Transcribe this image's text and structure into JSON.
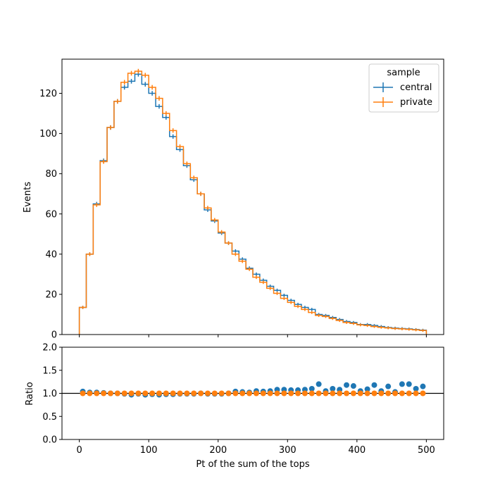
{
  "chart_data": [
    {
      "type": "step",
      "panel": "main",
      "ylabel": "Events",
      "xlim": [
        -25,
        525
      ],
      "ylim": [
        0,
        137
      ],
      "yticks": [
        0,
        20,
        40,
        60,
        80,
        100,
        120
      ],
      "bin_edges": [
        0,
        10,
        20,
        30,
        40,
        50,
        60,
        70,
        80,
        90,
        100,
        110,
        120,
        130,
        140,
        150,
        160,
        170,
        180,
        190,
        200,
        210,
        220,
        230,
        240,
        250,
        260,
        270,
        280,
        290,
        300,
        310,
        320,
        330,
        340,
        350,
        360,
        370,
        380,
        390,
        400,
        410,
        420,
        430,
        440,
        450,
        460,
        470,
        480,
        490,
        500
      ],
      "legend": {
        "title": "sample",
        "position": "top-right"
      },
      "series": [
        {
          "name": "central",
          "color": "#1f77b4",
          "values": [
            13.5,
            40,
            65,
            86.5,
            103,
            116,
            123,
            126,
            129.5,
            124.5,
            120,
            113.5,
            108,
            98.5,
            92,
            84,
            77,
            70,
            62,
            56.5,
            50.5,
            45.5,
            41.5,
            37.5,
            33,
            30,
            27,
            24,
            22,
            19.5,
            17,
            15,
            13.5,
            12.5,
            10,
            9.5,
            8.5,
            7.5,
            6.5,
            6,
            5,
            5,
            4.5,
            4,
            3.5,
            3.2,
            3,
            2.8,
            2.5,
            2.2
          ]
        },
        {
          "name": "private",
          "color": "#ff7f0e",
          "values": [
            13.5,
            40,
            64.5,
            86,
            103,
            116,
            125.5,
            130,
            131,
            129,
            123,
            117.5,
            110,
            101.5,
            93.5,
            85,
            78,
            70,
            63,
            57,
            51,
            45.5,
            40,
            36.5,
            32.5,
            28.5,
            26,
            23,
            20.5,
            18,
            16,
            14,
            12.5,
            11,
            9.5,
            9,
            8,
            7,
            6,
            5.5,
            4.8,
            4.5,
            4,
            3.6,
            3.3,
            3,
            2.8,
            2.6,
            2.3,
            2
          ]
        }
      ]
    },
    {
      "type": "scatter",
      "panel": "ratio",
      "xlabel": "Pt of the sum of the tops",
      "ylabel": "Ratio",
      "xlim": [
        -25,
        525
      ],
      "ylim": [
        0,
        2
      ],
      "yticks": [
        "0.0",
        "0.5",
        "1.0",
        "1.5",
        "2.0"
      ],
      "xticks": [
        "0",
        "100",
        "200",
        "300",
        "400",
        "500"
      ],
      "reference_line": 1.0,
      "x": [
        5,
        15,
        25,
        35,
        45,
        55,
        65,
        75,
        85,
        95,
        105,
        115,
        125,
        135,
        145,
        155,
        165,
        175,
        185,
        195,
        205,
        215,
        225,
        235,
        245,
        255,
        265,
        275,
        285,
        295,
        305,
        315,
        325,
        335,
        345,
        355,
        365,
        375,
        385,
        395,
        405,
        415,
        425,
        435,
        445,
        455,
        465,
        475,
        485,
        495
      ],
      "series": [
        {
          "name": "central",
          "color": "#1f77b4",
          "values": [
            1.04,
            1.02,
            1.02,
            1.01,
            1.0,
            1.0,
            0.99,
            0.97,
            0.99,
            0.97,
            0.98,
            0.97,
            0.98,
            0.98,
            0.99,
            0.99,
            0.99,
            1.0,
            0.99,
            0.99,
            0.99,
            1.0,
            1.04,
            1.03,
            1.02,
            1.05,
            1.04,
            1.05,
            1.08,
            1.08,
            1.07,
            1.07,
            1.08,
            1.1,
            1.2,
            1.05,
            1.1,
            1.08,
            1.18,
            1.16,
            1.05,
            1.09,
            1.18,
            1.05,
            1.15,
            1.03,
            1.2,
            1.2,
            1.1,
            1.15
          ]
        },
        {
          "name": "private",
          "color": "#ff7f0e",
          "values": [
            1,
            1,
            1,
            1,
            1,
            1,
            1,
            1,
            1,
            1,
            1,
            1,
            1,
            1,
            1,
            1,
            1,
            1,
            1,
            1,
            1,
            1,
            1,
            1,
            1,
            1,
            1,
            1,
            1,
            1,
            1,
            1,
            1,
            1,
            1,
            1,
            1,
            1,
            1,
            1,
            1,
            1,
            1,
            1,
            1,
            1,
            1,
            1,
            1,
            1
          ]
        }
      ]
    }
  ]
}
